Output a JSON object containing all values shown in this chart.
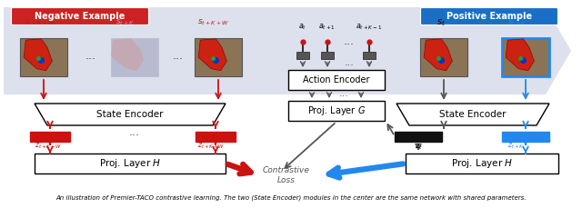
{
  "fig_width": 6.4,
  "fig_height": 2.29,
  "dpi": 100,
  "bg_color": "#ffffff",
  "banner_color": "#dde0ed",
  "neg_label_bg": "#cc2222",
  "pos_label_bg": "#1a6fc4",
  "neg_label_text": "Negative Example",
  "pos_label_text": "Positive Example",
  "neg_color": "#cc1111",
  "pos_color": "#2288ee",
  "gray_color": "#555555",
  "black_color": "#111111",
  "caption": "An illustration of Premier-TACO contrastive learning. The two (State Encoder) modules in the center are the same network with shared parameters."
}
